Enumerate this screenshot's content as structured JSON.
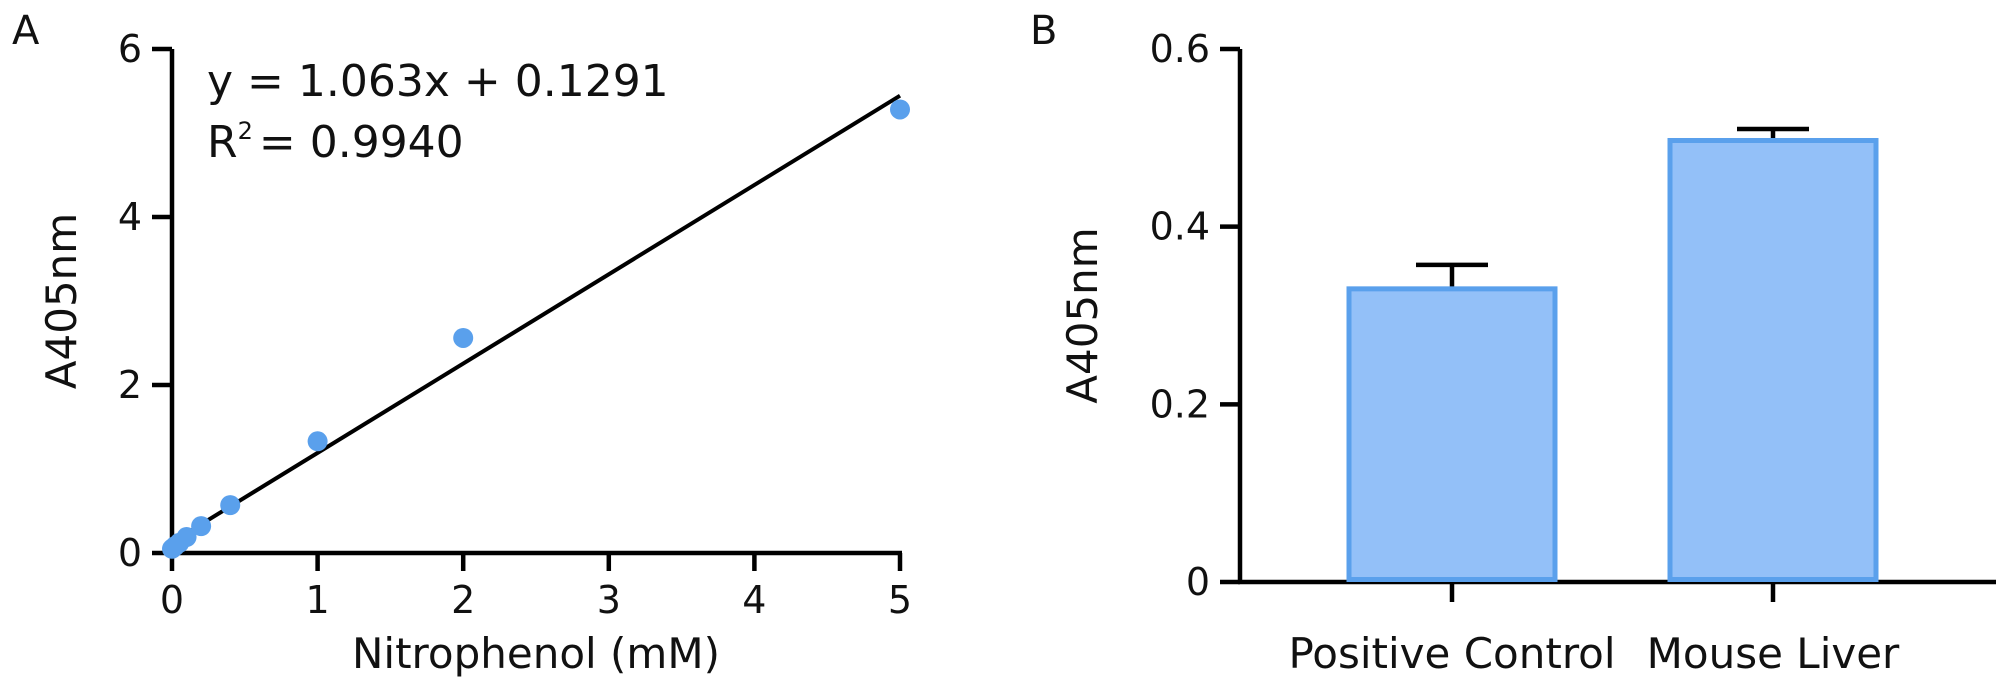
{
  "chart_data": [
    {
      "panel": "A",
      "type": "scatter",
      "xlabel": "Nitrophenol (mM)",
      "ylabel": "A405nm",
      "xlim": [
        0,
        5
      ],
      "ylim": [
        0,
        6
      ],
      "xticks": [
        "0",
        "1",
        "2",
        "3",
        "4",
        "5"
      ],
      "yticks": [
        "0",
        "2",
        "4",
        "6"
      ],
      "points": [
        {
          "x": 0,
          "y": 0.05
        },
        {
          "x": 0.02,
          "y": 0.08
        },
        {
          "x": 0.05,
          "y": 0.12
        },
        {
          "x": 0.1,
          "y": 0.19
        },
        {
          "x": 0.2,
          "y": 0.32
        },
        {
          "x": 0.4,
          "y": 0.57
        },
        {
          "x": 1,
          "y": 1.33
        },
        {
          "x": 2,
          "y": 2.56
        },
        {
          "x": 5,
          "y": 5.28
        }
      ],
      "fit": {
        "slope": 1.063,
        "intercept": 0.1291
      },
      "equation_text": "y = 1.063x + 0.1291",
      "r2_prefix": "R",
      "r2_sup": "2",
      "r2_value": "= 0.9940",
      "grid": false
    },
    {
      "panel": "B",
      "type": "bar",
      "ylabel": "A405nm",
      "ylim": [
        0,
        0.6
      ],
      "yticks": [
        "0",
        "0.2",
        "0.4",
        "0.6"
      ],
      "categories": [
        "Positive Control",
        "Mouse Liver"
      ],
      "values": [
        0.33,
        0.497
      ],
      "errors": [
        0.027,
        0.013
      ],
      "grid": false
    }
  ],
  "colors": {
    "marker": "#5aa0ec",
    "bar_fill": "#93c0f8",
    "bar_edge": "#5aa0ec"
  }
}
